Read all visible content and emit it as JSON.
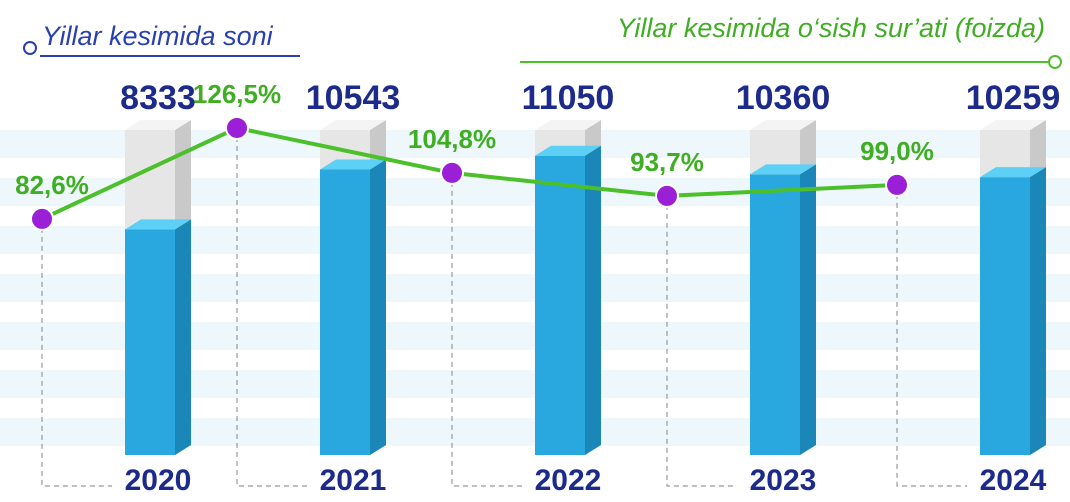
{
  "chart_data": {
    "type": "bar",
    "categories": [
      "2020",
      "2021",
      "2022",
      "2023",
      "2024"
    ],
    "series": [
      {
        "name": "Yillar kesimida soni",
        "color": "#29a8e0",
        "values": [
          8333,
          10543,
          11050,
          10360,
          10259
        ]
      },
      {
        "name": "Yillar kesimida o‘sish sur’ati (foizda)",
        "color": "#4cc02a",
        "axis": "y2",
        "values": [
          82.6,
          126.5,
          104.8,
          93.7,
          99.0
        ],
        "value_labels": [
          "82,6%",
          "126,5%",
          "104,8%",
          "93,7%",
          "99,0%"
        ]
      }
    ],
    "ylim": [
      0,
      12000
    ],
    "y2lim": [
      0,
      140
    ]
  }
}
